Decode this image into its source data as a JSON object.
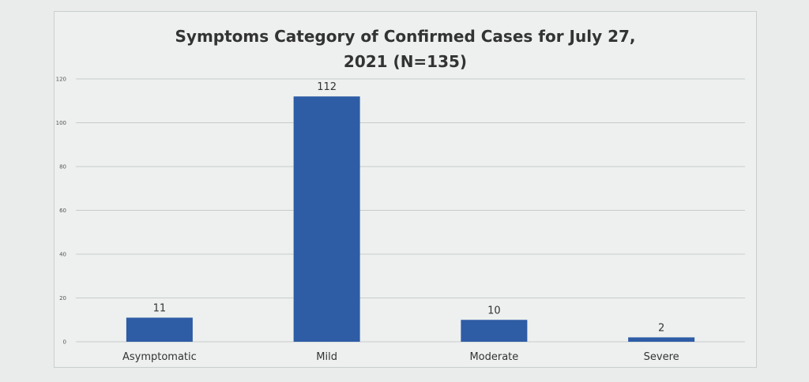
{
  "chart_data": {
    "type": "bar",
    "title_lines": [
      "Symptoms Category of Confirmed Cases for  July 27,",
      "2021 (N=135)"
    ],
    "categories": [
      "Asymptomatic",
      "Mild",
      "Moderate",
      "Severe"
    ],
    "values": [
      11,
      112,
      10,
      2
    ],
    "data_labels": [
      "11",
      "112",
      "10",
      "2"
    ],
    "ylim": [
      0,
      120
    ],
    "y_ticks": [
      0,
      20,
      40,
      60,
      80,
      100,
      120
    ],
    "grid": true,
    "legend": "none",
    "bar_color": "#2e5ca5"
  }
}
